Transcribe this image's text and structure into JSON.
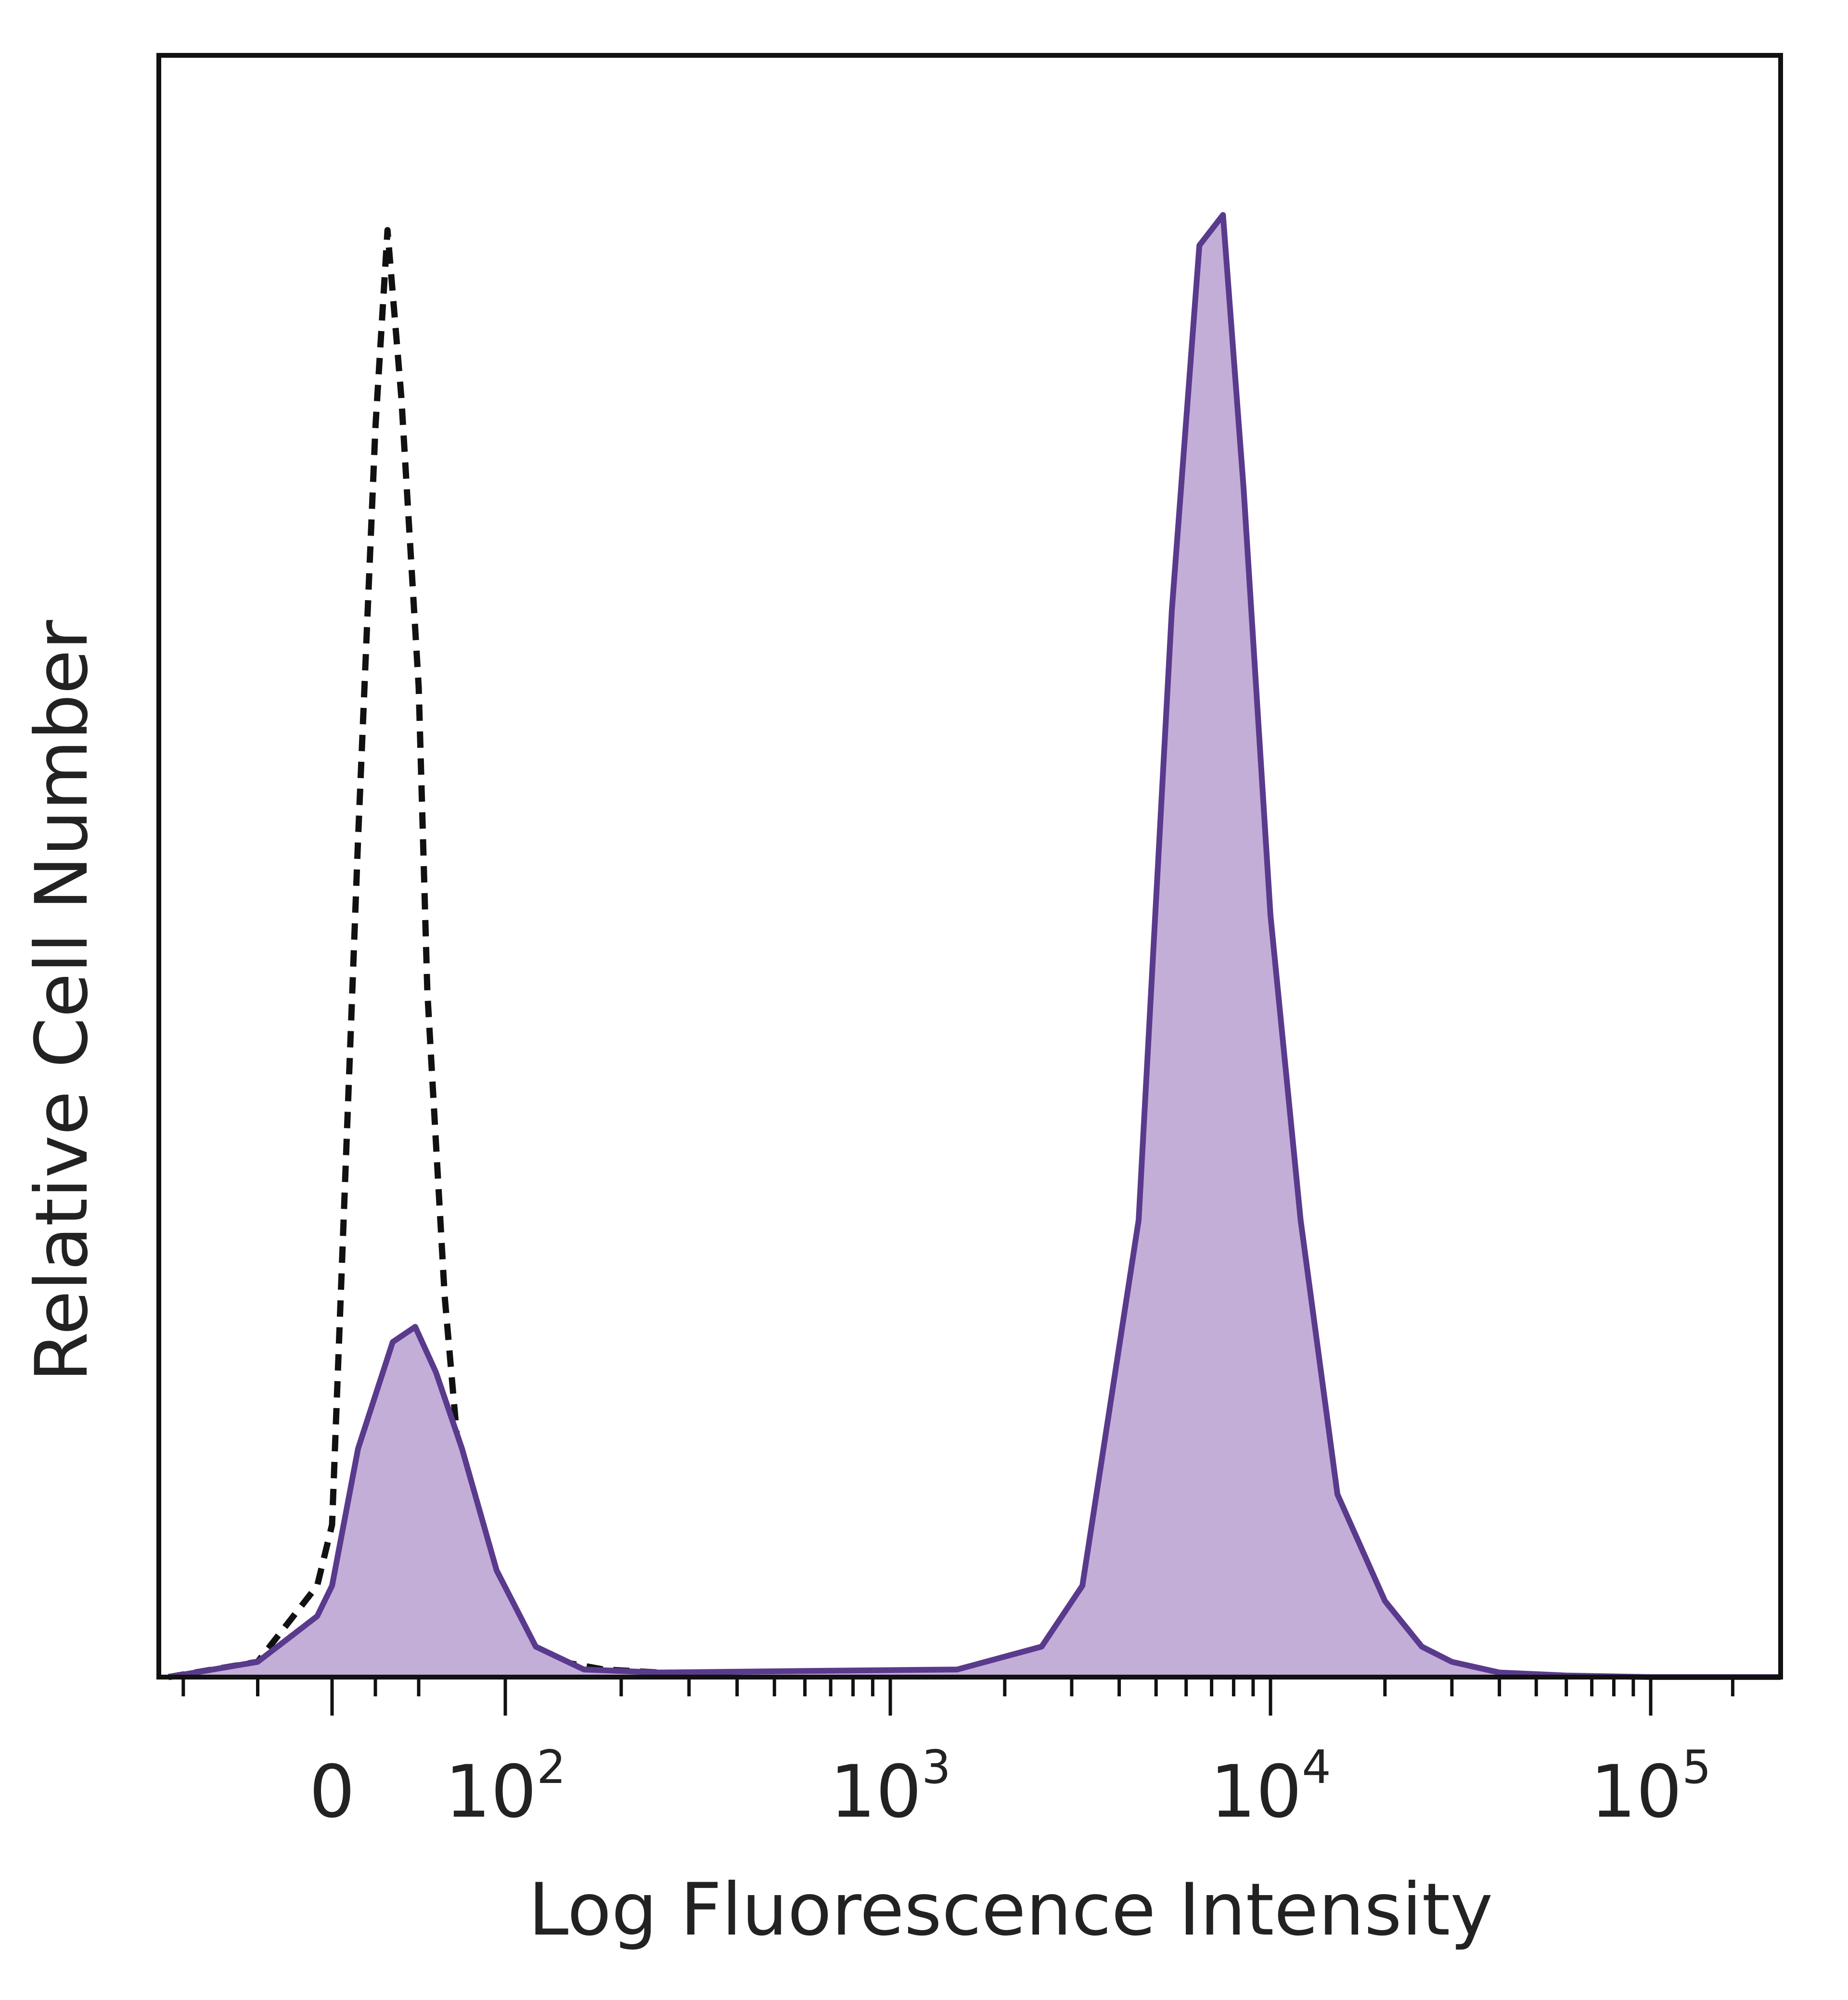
{
  "chart_data": {
    "type": "area",
    "xlabel": "Log Fluorescence Intensity",
    "ylabel": "Relative Cell Number",
    "x_scale": "biexponential",
    "xlim": [
      -55,
      300000
    ],
    "ylim": [
      0,
      1.0
    ],
    "grid": false,
    "legend": "none",
    "x_ticks": [
      {
        "value": 0,
        "label": "0"
      },
      {
        "value": 100,
        "label": "10",
        "exp": "2"
      },
      {
        "value": 1000,
        "label": "10",
        "exp": "3"
      },
      {
        "value": 10000,
        "label": "10",
        "exp": "4"
      },
      {
        "value": 100000,
        "label": "10",
        "exp": "5"
      }
    ],
    "series": [
      {
        "style": "dashed",
        "color": "#111111",
        "x": [
          -55,
          -25,
          -5,
          0,
          5,
          15,
          25,
          32,
          40,
          50,
          55,
          65,
          75,
          90,
          110,
          140,
          180,
          250,
          400,
          700
        ],
        "y": [
          0.0,
          0.01,
          0.06,
          0.1,
          0.25,
          0.55,
          0.82,
          0.95,
          0.84,
          0.65,
          0.45,
          0.25,
          0.12,
          0.06,
          0.02,
          0.01,
          0.005,
          0.003,
          0.002,
          0.002
        ]
      },
      {
        "style": "filled",
        "color": "#5a3a8c",
        "fill": "#c3aed8",
        "x": [
          -55,
          -25,
          -5,
          0,
          15,
          35,
          48,
          60,
          75,
          95,
          120,
          160,
          250,
          600,
          1500,
          2500,
          3200,
          4500,
          5500,
          6500,
          7500,
          8500,
          10000,
          12000,
          15000,
          20000,
          25000,
          30000,
          40000,
          60000,
          100000,
          300000
        ],
        "y": [
          0.0,
          0.01,
          0.04,
          0.06,
          0.15,
          0.22,
          0.23,
          0.2,
          0.15,
          0.07,
          0.02,
          0.005,
          0.003,
          0.004,
          0.005,
          0.02,
          0.06,
          0.3,
          0.7,
          0.94,
          0.96,
          0.78,
          0.5,
          0.3,
          0.12,
          0.05,
          0.02,
          0.01,
          0.003,
          0.001,
          0.0,
          0.0
        ]
      }
    ]
  }
}
